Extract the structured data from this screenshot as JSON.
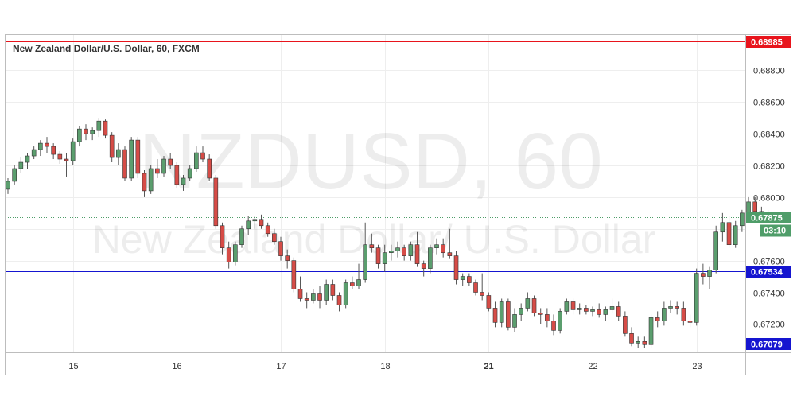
{
  "title": "New Zealand Dollar/U.S. Dollar, 60, FXCM",
  "watermark": {
    "symbol": "NZDUSD, 60",
    "name": "New Zealand Dollar/ U.S. Dollar"
  },
  "colors": {
    "up": "#5b9e6e",
    "down": "#d64c47",
    "red_line": "#e8141c",
    "blue_line": "#1515d0",
    "last_tag": "#4f9d69",
    "grid": "#eeeeee"
  },
  "chart_data": {
    "type": "candlestick",
    "timeframe": "60",
    "x_ticks": [
      {
        "label": "15",
        "bar": 10
      },
      {
        "label": "16",
        "bar": 26
      },
      {
        "label": "17",
        "bar": 42
      },
      {
        "label": "18",
        "bar": 58
      },
      {
        "label": "21",
        "bar": 74,
        "bold": true
      },
      {
        "label": "22",
        "bar": 90
      },
      {
        "label": "23",
        "bar": 106
      }
    ],
    "ylim": [
      0.6698,
      0.6904
    ],
    "y_ticks": [
      0.672,
      0.674,
      0.676,
      0.678,
      0.68,
      0.682,
      0.684,
      0.686,
      0.688
    ],
    "y_tick_labels": [
      "0.67200",
      "0.67400",
      "0.67600",
      "",
      "0.68000",
      "0.68200",
      "0.68400",
      "0.68600",
      "0.68800"
    ],
    "levels": [
      {
        "value": 0.68985,
        "label": "0.68985",
        "kind": "red"
      },
      {
        "value": 0.67534,
        "label": "0.67534",
        "kind": "blue"
      },
      {
        "value": 0.67079,
        "label": "0.67079",
        "kind": "blue"
      }
    ],
    "last_price": {
      "value": 0.67875,
      "label": "0.67875",
      "countdown": "03:10"
    },
    "candles": [
      [
        0.6805,
        0.6812,
        0.6802,
        0.681
      ],
      [
        0.681,
        0.682,
        0.6808,
        0.6818
      ],
      [
        0.6818,
        0.6825,
        0.6815,
        0.6822
      ],
      [
        0.6822,
        0.6828,
        0.6818,
        0.6826
      ],
      [
        0.6826,
        0.6832,
        0.6824,
        0.683
      ],
      [
        0.683,
        0.6836,
        0.6826,
        0.6834
      ],
      [
        0.6834,
        0.6838,
        0.6828,
        0.6832
      ],
      [
        0.6832,
        0.6834,
        0.6824,
        0.6827
      ],
      [
        0.6827,
        0.6829,
        0.6821,
        0.6824
      ],
      [
        0.6824,
        0.6828,
        0.6813,
        0.6823
      ],
      [
        0.6823,
        0.6837,
        0.682,
        0.6835
      ],
      [
        0.6835,
        0.6845,
        0.6832,
        0.6843
      ],
      [
        0.6843,
        0.6846,
        0.6836,
        0.684
      ],
      [
        0.684,
        0.6844,
        0.6836,
        0.6842
      ],
      [
        0.6842,
        0.685,
        0.6838,
        0.6848
      ],
      [
        0.6848,
        0.6849,
        0.6837,
        0.6839
      ],
      [
        0.6839,
        0.6841,
        0.6822,
        0.6825
      ],
      [
        0.6825,
        0.6834,
        0.682,
        0.683
      ],
      [
        0.683,
        0.6832,
        0.681,
        0.6812
      ],
      [
        0.6812,
        0.6838,
        0.681,
        0.6836
      ],
      [
        0.6836,
        0.6838,
        0.6812,
        0.6815
      ],
      [
        0.6815,
        0.6817,
        0.68,
        0.6804
      ],
      [
        0.6804,
        0.682,
        0.6802,
        0.6818
      ],
      [
        0.6818,
        0.6824,
        0.6812,
        0.6815
      ],
      [
        0.6815,
        0.6826,
        0.6813,
        0.6824
      ],
      [
        0.6824,
        0.6828,
        0.6818,
        0.682
      ],
      [
        0.682,
        0.6822,
        0.6806,
        0.6808
      ],
      [
        0.6808,
        0.6814,
        0.6804,
        0.6812
      ],
      [
        0.6812,
        0.682,
        0.681,
        0.6818
      ],
      [
        0.6818,
        0.6832,
        0.6816,
        0.6828
      ],
      [
        0.6828,
        0.6832,
        0.6822,
        0.6824
      ],
      [
        0.6824,
        0.6827,
        0.681,
        0.6812
      ],
      [
        0.6812,
        0.6814,
        0.678,
        0.6782
      ],
      [
        0.6782,
        0.6784,
        0.6764,
        0.6768
      ],
      [
        0.6768,
        0.6772,
        0.6755,
        0.6759
      ],
      [
        0.6759,
        0.6772,
        0.6757,
        0.677
      ],
      [
        0.677,
        0.6782,
        0.6768,
        0.678
      ],
      [
        0.678,
        0.6788,
        0.6776,
        0.6785
      ],
      [
        0.6785,
        0.6788,
        0.678,
        0.6786
      ],
      [
        0.6786,
        0.6789,
        0.678,
        0.6782
      ],
      [
        0.6782,
        0.6784,
        0.6775,
        0.6777
      ],
      [
        0.6777,
        0.678,
        0.677,
        0.6772
      ],
      [
        0.6772,
        0.6775,
        0.676,
        0.6763
      ],
      [
        0.6763,
        0.6767,
        0.6755,
        0.676
      ],
      [
        0.676,
        0.6762,
        0.674,
        0.6742
      ],
      [
        0.6742,
        0.675,
        0.6734,
        0.6736
      ],
      [
        0.6736,
        0.674,
        0.673,
        0.6735
      ],
      [
        0.6735,
        0.6742,
        0.6733,
        0.6739
      ],
      [
        0.6739,
        0.6744,
        0.673,
        0.6735
      ],
      [
        0.6735,
        0.6748,
        0.6732,
        0.6745
      ],
      [
        0.6745,
        0.6748,
        0.6735,
        0.6738
      ],
      [
        0.6738,
        0.674,
        0.6728,
        0.6732
      ],
      [
        0.6732,
        0.6748,
        0.673,
        0.6746
      ],
      [
        0.6746,
        0.675,
        0.6742,
        0.6744
      ],
      [
        0.6744,
        0.6758,
        0.6742,
        0.6748
      ],
      [
        0.6748,
        0.6784,
        0.6746,
        0.677
      ],
      [
        0.677,
        0.6777,
        0.6765,
        0.6768
      ],
      [
        0.6768,
        0.677,
        0.6755,
        0.6758
      ],
      [
        0.6758,
        0.677,
        0.6753,
        0.6765
      ],
      [
        0.6765,
        0.677,
        0.676,
        0.6766
      ],
      [
        0.6766,
        0.6772,
        0.6762,
        0.6768
      ],
      [
        0.6768,
        0.677,
        0.676,
        0.6763
      ],
      [
        0.6763,
        0.6772,
        0.676,
        0.677
      ],
      [
        0.677,
        0.6778,
        0.6756,
        0.6758
      ],
      [
        0.6758,
        0.676,
        0.675,
        0.6755
      ],
      [
        0.6755,
        0.677,
        0.6752,
        0.6768
      ],
      [
        0.6768,
        0.6774,
        0.6764,
        0.677
      ],
      [
        0.677,
        0.6774,
        0.6762,
        0.6765
      ],
      [
        0.6765,
        0.678,
        0.6761,
        0.6763
      ],
      [
        0.6763,
        0.6766,
        0.6745,
        0.6748
      ],
      [
        0.6748,
        0.6752,
        0.6744,
        0.675
      ],
      [
        0.675,
        0.6752,
        0.6744,
        0.6746
      ],
      [
        0.6746,
        0.6748,
        0.6738,
        0.674
      ],
      [
        0.674,
        0.6752,
        0.6735,
        0.6738
      ],
      [
        0.6738,
        0.674,
        0.6728,
        0.673
      ],
      [
        0.673,
        0.6734,
        0.6718,
        0.6721
      ],
      [
        0.6721,
        0.6736,
        0.6718,
        0.6734
      ],
      [
        0.6734,
        0.6736,
        0.6716,
        0.6718
      ],
      [
        0.6718,
        0.673,
        0.6715,
        0.6726
      ],
      [
        0.6726,
        0.6733,
        0.6722,
        0.673
      ],
      [
        0.673,
        0.674,
        0.6728,
        0.6736
      ],
      [
        0.6736,
        0.6738,
        0.6725,
        0.6727
      ],
      [
        0.6727,
        0.673,
        0.672,
        0.6726
      ],
      [
        0.6726,
        0.673,
        0.6718,
        0.6722
      ],
      [
        0.6722,
        0.6726,
        0.6713,
        0.6716
      ],
      [
        0.6716,
        0.673,
        0.6714,
        0.6728
      ],
      [
        0.6728,
        0.6736,
        0.6726,
        0.6734
      ],
      [
        0.6734,
        0.6736,
        0.6726,
        0.6729
      ],
      [
        0.6729,
        0.6733,
        0.6726,
        0.673
      ],
      [
        0.673,
        0.6732,
        0.6726,
        0.6728
      ],
      [
        0.6728,
        0.6731,
        0.6725,
        0.6729
      ],
      [
        0.6729,
        0.6733,
        0.6724,
        0.6726
      ],
      [
        0.6726,
        0.6731,
        0.6722,
        0.6729
      ],
      [
        0.6729,
        0.6736,
        0.6727,
        0.6731
      ],
      [
        0.6731,
        0.6734,
        0.6722,
        0.6725
      ],
      [
        0.6725,
        0.6728,
        0.6712,
        0.6714
      ],
      [
        0.6714,
        0.6718,
        0.6706,
        0.6708
      ],
      [
        0.6708,
        0.6712,
        0.6705,
        0.6709
      ],
      [
        0.6709,
        0.6712,
        0.6705,
        0.6707
      ],
      [
        0.6707,
        0.6726,
        0.6705,
        0.6724
      ],
      [
        0.6724,
        0.6728,
        0.6718,
        0.6722
      ],
      [
        0.6722,
        0.6734,
        0.6719,
        0.673
      ],
      [
        0.673,
        0.6735,
        0.6727,
        0.6731
      ],
      [
        0.6731,
        0.6734,
        0.6726,
        0.673
      ],
      [
        0.673,
        0.6734,
        0.6719,
        0.6722
      ],
      [
        0.6722,
        0.6726,
        0.6718,
        0.6721
      ],
      [
        0.6721,
        0.6755,
        0.6719,
        0.6752
      ],
      [
        0.6752,
        0.6758,
        0.6745,
        0.675
      ],
      [
        0.675,
        0.6756,
        0.6742,
        0.6754
      ],
      [
        0.6754,
        0.6782,
        0.6752,
        0.6778
      ],
      [
        0.6778,
        0.679,
        0.6772,
        0.6784
      ],
      [
        0.6784,
        0.6788,
        0.6768,
        0.677
      ],
      [
        0.677,
        0.6785,
        0.6768,
        0.6782
      ],
      [
        0.6782,
        0.6792,
        0.6778,
        0.679
      ],
      [
        0.679,
        0.68,
        0.6787,
        0.6797
      ],
      [
        0.6797,
        0.68,
        0.6788,
        0.6791
      ],
      [
        0.6791,
        0.6794,
        0.6785,
        0.6789
      ],
      [
        0.6789,
        0.6792,
        0.6785,
        0.67875
      ]
    ]
  }
}
